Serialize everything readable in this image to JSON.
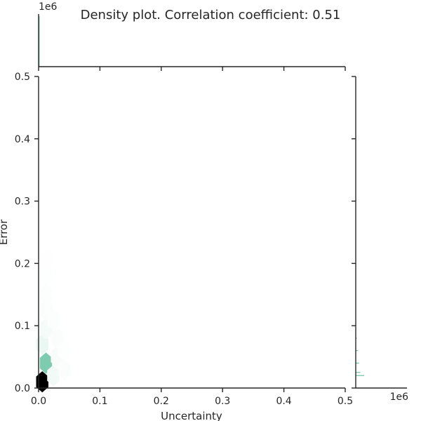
{
  "chart_data": {
    "type": "heatmap",
    "title": "Density plot. Correlation coefficient: 0.51",
    "xlabel": "Uncertainty",
    "ylabel": "Error",
    "xlim": [
      0,
      0.5
    ],
    "ylim": [
      0,
      0.5
    ],
    "x_ticks": [
      "0.0",
      "0.1",
      "0.2",
      "0.3",
      "0.4",
      "0.5"
    ],
    "y_ticks": [
      "0.0",
      "0.1",
      "0.2",
      "0.3",
      "0.4",
      "0.5"
    ],
    "x_ticks_values": [
      0,
      0.1,
      0.2,
      0.3,
      0.4,
      0.5
    ],
    "y_ticks_values": [
      0,
      0.1,
      0.2,
      0.3,
      0.4,
      0.5
    ],
    "top_marginal_exponent": "1e6",
    "right_marginal_exponent": "1e6",
    "cell_size": [
      0.02,
      0.017
    ],
    "colors": {
      "low": "#ffffff",
      "mid": "#7fcbb0",
      "high": "#000000",
      "accent": "#67c2a5"
    },
    "hex_cells": [
      {
        "x": 0.006,
        "y": 0.01,
        "density": 1.0
      },
      {
        "x": 0.012,
        "y": 0.04,
        "density": 0.5
      },
      {
        "x": 0.006,
        "y": 0.07,
        "density": 0.08
      },
      {
        "x": 0.012,
        "y": 0.095,
        "density": 0.04
      },
      {
        "x": 0.012,
        "y": 0.125,
        "density": 0.02
      },
      {
        "x": 0.012,
        "y": 0.15,
        "density": 0.01
      },
      {
        "x": 0.012,
        "y": 0.18,
        "density": 0.008
      },
      {
        "x": 0.012,
        "y": 0.205,
        "density": 0.005
      },
      {
        "x": 0.024,
        "y": 0.02,
        "density": 0.05
      },
      {
        "x": 0.03,
        "y": 0.05,
        "density": 0.03
      },
      {
        "x": 0.03,
        "y": 0.08,
        "density": 0.015
      },
      {
        "x": 0.024,
        "y": 0.11,
        "density": 0.01
      },
      {
        "x": 0.042,
        "y": 0.03,
        "density": 0.015
      },
      {
        "x": 0.036,
        "y": 0.14,
        "density": 0.004
      },
      {
        "x": 0.042,
        "y": 0.06,
        "density": 0.008
      }
    ],
    "top_marginal": [
      {
        "x": 0.0005,
        "count": 1.0
      }
    ],
    "right_marginal": [
      {
        "y": 0.02,
        "count": 0.75
      },
      {
        "y": 0.025,
        "count": 0.4
      },
      {
        "y": 0.04,
        "count": 0.3
      },
      {
        "y": 0.06,
        "count": 0.2
      },
      {
        "y": 0.08,
        "count": 0.1
      }
    ]
  }
}
